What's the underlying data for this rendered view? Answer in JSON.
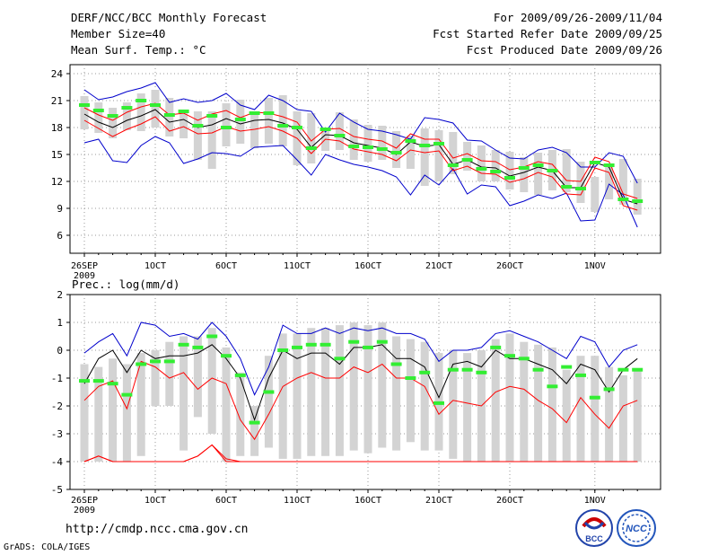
{
  "header": {
    "title": "DERF/NCC/BCC Monthly Forecast",
    "member_size": "Member Size=40",
    "variable": "Mean Surf. Temp.: °C",
    "period": "For 2009/09/26-2009/11/04",
    "started": "Fcst Started Refer Date 2009/09/25",
    "produced": "Fcst Produced Date 2009/09/26"
  },
  "footer": {
    "url": "http://cmdp.ncc.cma.gov.cn",
    "credit": "GrADS: COLA/IGES",
    "logo_bcc_text": "BCC",
    "logo_ncc_text": "NCC"
  },
  "colors": {
    "box": "#d3d3d3",
    "median": "#000000",
    "max": "#0000cc",
    "min": "#ff0000",
    "obs": "#33ee33",
    "red_env": "#cc0000"
  },
  "chart_data": [
    {
      "type": "line",
      "title": "Mean Surf. Temp.: °C",
      "ylim": [
        4,
        25
      ],
      "yticks": [
        6,
        9,
        12,
        15,
        18,
        21,
        24
      ],
      "ytick_labels": [
        "6",
        "9",
        "12",
        "15",
        "18",
        "21",
        "24"
      ],
      "x_tick_labels": [
        {
          "day": 0,
          "label": "26SEP",
          "sub": "2009"
        },
        {
          "day": 5,
          "label": "1OCT"
        },
        {
          "day": 10,
          "label": "6OCT"
        },
        {
          "day": 15,
          "label": "11OCT"
        },
        {
          "day": 20,
          "label": "16OCT"
        },
        {
          "day": 25,
          "label": "21OCT"
        },
        {
          "day": 30,
          "label": "26OCT"
        },
        {
          "day": 36,
          "label": "1NOV"
        }
      ],
      "x_days": 40,
      "series": [
        {
          "name": "box_top",
          "values": [
            21.5,
            20.8,
            20.2,
            20.8,
            21.8,
            22.2,
            21.3,
            19.7,
            19.8,
            19.8,
            20.7,
            21.1,
            19.6,
            21.3,
            21.6,
            19.8,
            19.6,
            17.8,
            19.7,
            18.9,
            18.3,
            18.2,
            17.6,
            17.1,
            17.9,
            17.7,
            17.5,
            16.4,
            16.0,
            15.5,
            15.3,
            14.7,
            15.2,
            15.5,
            15.6,
            14.2,
            12.5,
            13.7,
            14.5,
            12.3
          ]
        },
        {
          "name": "box_bottom",
          "values": [
            17.8,
            17.4,
            16.8,
            17.7,
            17.6,
            18.0,
            17.0,
            16.8,
            14.4,
            13.4,
            15.9,
            16.2,
            15.7,
            16.2,
            15.9,
            13.8,
            14.0,
            15.4,
            15.5,
            14.4,
            14.2,
            14.4,
            13.5,
            13.4,
            11.5,
            12.0,
            12.8,
            13.2,
            12.0,
            12.0,
            11.1,
            10.8,
            10.5,
            11.0,
            10.8,
            9.6,
            8.6,
            10.0,
            9.4,
            8.3
          ]
        },
        {
          "name": "max",
          "values": [
            22.2,
            21.1,
            21.4,
            22.0,
            22.4,
            23.0,
            20.8,
            21.2,
            20.8,
            21.0,
            21.8,
            20.5,
            20.0,
            21.6,
            21.0,
            20.0,
            19.8,
            17.5,
            19.6,
            18.6,
            17.8,
            17.6,
            17.2,
            16.7,
            19.1,
            18.9,
            18.5,
            16.6,
            16.5,
            15.5,
            14.6,
            14.5,
            15.5,
            15.8,
            15.2,
            13.6,
            13.6,
            15.2,
            14.8,
            11.8
          ]
        },
        {
          "name": "min",
          "values": [
            16.3,
            16.7,
            14.3,
            14.1,
            16.0,
            17.0,
            16.3,
            14.0,
            14.5,
            15.2,
            15.1,
            14.8,
            15.8,
            15.9,
            16.0,
            14.4,
            12.7,
            15.0,
            14.4,
            13.9,
            13.6,
            13.2,
            12.5,
            10.5,
            12.7,
            11.6,
            13.4,
            10.6,
            11.6,
            11.4,
            9.3,
            9.8,
            10.5,
            10.1,
            10.7,
            7.6,
            7.7,
            11.7,
            10.5,
            6.9
          ]
        },
        {
          "name": "median",
          "values": [
            19.5,
            18.6,
            18.0,
            18.8,
            19.3,
            20.0,
            18.6,
            18.9,
            18.0,
            18.3,
            19.0,
            18.4,
            18.8,
            18.9,
            18.5,
            17.8,
            15.8,
            17.2,
            17.1,
            16.3,
            16.0,
            15.7,
            15.0,
            16.4,
            15.9,
            16.1,
            13.9,
            14.4,
            13.6,
            13.5,
            12.6,
            13.0,
            13.6,
            13.2,
            11.3,
            11.3,
            14.1,
            13.6,
            10.0,
            9.5
          ]
        },
        {
          "name": "upper_red",
          "values": [
            20.2,
            19.4,
            18.8,
            19.7,
            20.3,
            20.7,
            19.4,
            19.6,
            18.8,
            19.5,
            19.9,
            19.1,
            19.7,
            19.6,
            19.2,
            18.6,
            16.5,
            17.8,
            17.9,
            17.0,
            16.7,
            16.5,
            15.7,
            17.3,
            16.7,
            16.7,
            14.6,
            15.1,
            14.3,
            14.2,
            13.3,
            13.6,
            14.2,
            13.9,
            12.1,
            12.0,
            14.7,
            14.2,
            10.6,
            10.1
          ]
        },
        {
          "name": "lower_red",
          "values": [
            18.8,
            17.9,
            17.0,
            17.8,
            18.4,
            19.2,
            17.6,
            18.1,
            17.3,
            17.4,
            18.1,
            17.6,
            17.8,
            18.1,
            17.6,
            16.8,
            15.1,
            16.7,
            16.5,
            15.6,
            15.3,
            15.0,
            14.3,
            15.5,
            15.2,
            15.4,
            13.2,
            13.7,
            12.9,
            12.8,
            11.9,
            12.3,
            13.0,
            12.5,
            10.6,
            10.5,
            13.5,
            13.0,
            9.3,
            8.8
          ]
        },
        {
          "name": "observed",
          "values": [
            20.5,
            19.9,
            19.3,
            20.2,
            21.0,
            20.5,
            19.4,
            19.8,
            18.2,
            19.3,
            18.0,
            18.9,
            19.6,
            19.6,
            18.2,
            18.0,
            15.7,
            17.8,
            17.1,
            15.9,
            15.8,
            15.6,
            15.2,
            16.5,
            16.0,
            16.2,
            13.8,
            14.4,
            13.4,
            13.1,
            12.4,
            13.5,
            13.8,
            13.2,
            11.4,
            11.2,
            14.1,
            13.8,
            10.0,
            9.8
          ]
        }
      ]
    },
    {
      "type": "line",
      "title": "Prec.: log(mm/d)",
      "ylim": [
        -5,
        2
      ],
      "yticks": [
        -5,
        -4,
        -3,
        -2,
        -1,
        0,
        1,
        2
      ],
      "ytick_labels": [
        "-5",
        "-4",
        "-3",
        "-2",
        "-1",
        "0",
        "1",
        "2"
      ],
      "x_tick_labels": [
        {
          "day": 0,
          "label": "26SEP",
          "sub": "2009"
        },
        {
          "day": 5,
          "label": "1OCT"
        },
        {
          "day": 10,
          "label": "6OCT"
        },
        {
          "day": 15,
          "label": "11OCT"
        },
        {
          "day": 20,
          "label": "16OCT"
        },
        {
          "day": 25,
          "label": "21OCT"
        },
        {
          "day": 30,
          "label": "26OCT"
        },
        {
          "day": 36,
          "label": "1NOV"
        }
      ],
      "x_days": 40,
      "series": [
        {
          "name": "box_top",
          "values": [
            -0.5,
            -0.6,
            -0.3,
            -0.5,
            -0.1,
            0.0,
            0.3,
            0.5,
            0.5,
            0.8,
            0.1,
            -0.8,
            -2.0,
            -0.2,
            0.6,
            0.6,
            0.8,
            0.8,
            0.9,
            1.0,
            0.9,
            1.0,
            0.5,
            0.4,
            0.3,
            -0.1,
            0.0,
            -0.1,
            0.0,
            0.4,
            0.6,
            0.3,
            0.2,
            0.1,
            -0.7,
            -0.2,
            -0.2,
            -0.6,
            -0.9,
            -0.7
          ]
        },
        {
          "name": "box_bottom",
          "values": [
            -4.0,
            -4.0,
            -4.0,
            -4.0,
            -3.8,
            -2.0,
            -2.0,
            -3.6,
            -2.4,
            -3.0,
            -4.0,
            -3.8,
            -3.8,
            -3.5,
            -3.9,
            -3.9,
            -3.8,
            -3.8,
            -3.8,
            -3.6,
            -3.7,
            -3.5,
            -3.6,
            -3.3,
            -3.6,
            -3.6,
            -3.9,
            -4.0,
            -4.0,
            -4.0,
            -4.0,
            -4.0,
            -4.0,
            -4.0,
            -4.0,
            -4.0,
            -4.0,
            -4.0,
            -4.0,
            -4.0
          ]
        },
        {
          "name": "max",
          "values": [
            -0.1,
            0.3,
            0.6,
            -0.2,
            1.0,
            0.9,
            0.5,
            0.6,
            0.4,
            1.0,
            0.5,
            -0.3,
            -1.6,
            -0.6,
            0.9,
            0.6,
            0.6,
            0.8,
            0.6,
            0.8,
            0.7,
            0.8,
            0.6,
            0.6,
            0.4,
            -0.4,
            0.0,
            0.0,
            0.1,
            0.6,
            0.7,
            0.5,
            0.3,
            0.0,
            -0.3,
            0.5,
            0.3,
            -0.6,
            0.0,
            0.2
          ]
        },
        {
          "name": "min",
          "values": [
            -4.0,
            -3.8,
            -4.0,
            -4.0,
            -4.0,
            -4.0,
            -4.0,
            -4.0,
            -3.8,
            -3.4,
            -4.0,
            -4.0,
            -4.0,
            -4.0,
            -4.0,
            -4.0,
            -4.0,
            -4.0,
            -4.0,
            -4.0,
            -4.0,
            -4.0,
            -4.0,
            -4.0,
            -4.0,
            -4.0,
            -4.0,
            -4.0,
            -4.0,
            -4.0,
            -4.0,
            -4.0,
            -4.0,
            -4.0,
            -4.0,
            -4.0,
            -4.0,
            -4.0,
            -4.0,
            -4.0
          ]
        },
        {
          "name": "median",
          "values": [
            -1.2,
            -0.3,
            0.0,
            -0.8,
            0.0,
            -0.3,
            -0.2,
            -0.2,
            -0.1,
            0.2,
            -0.3,
            -1.0,
            -2.5,
            -1.0,
            0.0,
            -0.3,
            -0.1,
            -0.1,
            -0.5,
            0.1,
            0.1,
            0.2,
            -0.3,
            -0.3,
            -0.6,
            -1.7,
            -0.5,
            -0.4,
            -0.6,
            0.0,
            -0.3,
            -0.3,
            -0.5,
            -0.7,
            -1.2,
            -0.5,
            -0.7,
            -1.5,
            -0.7,
            -0.3
          ]
        },
        {
          "name": "lower_red",
          "values": [
            -1.8,
            -1.3,
            -1.1,
            -2.1,
            -0.4,
            -0.6,
            -1.0,
            -0.8,
            -1.4,
            -1.0,
            -1.2,
            -2.5,
            -3.2,
            -2.3,
            -1.3,
            -1.0,
            -0.8,
            -1.0,
            -1.0,
            -0.6,
            -0.8,
            -0.5,
            -1.0,
            -1.0,
            -1.3,
            -2.3,
            -1.8,
            -1.9,
            -2.0,
            -1.5,
            -1.3,
            -1.4,
            -1.8,
            -2.1,
            -2.6,
            -1.7,
            -2.3,
            -2.8,
            -2.0,
            -1.8
          ]
        },
        {
          "name": "lower_floor",
          "values": [
            -4.0,
            -3.8,
            -4.0,
            -4.0,
            -4.0,
            -4.0,
            -4.0,
            -4.0,
            -3.8,
            -3.4,
            -3.9,
            -4.0,
            -4.0,
            -4.0,
            -4.0,
            -4.0,
            -4.0,
            -4.0,
            -4.0,
            -4.0,
            -4.0,
            -4.0,
            -4.0,
            -4.0,
            -4.0,
            -4.0,
            -4.0,
            -4.0,
            -4.0,
            -4.0,
            -4.0,
            -4.0,
            -4.0,
            -4.0,
            -4.0,
            -4.0,
            -4.0,
            -4.0,
            -4.0,
            -4.0
          ]
        },
        {
          "name": "observed",
          "values": [
            -1.1,
            -1.1,
            -1.2,
            -1.6,
            -0.5,
            -0.4,
            -0.4,
            0.2,
            0.1,
            0.5,
            -0.2,
            -0.9,
            -2.6,
            -1.5,
            0.0,
            0.1,
            0.2,
            0.2,
            -0.3,
            0.3,
            0.1,
            0.3,
            -0.5,
            -1.0,
            -0.8,
            -1.9,
            -0.7,
            -0.7,
            -0.8,
            0.1,
            -0.2,
            -0.3,
            -0.7,
            -1.3,
            -0.6,
            -0.9,
            -1.7,
            -1.4,
            -0.7,
            -0.7
          ]
        }
      ]
    }
  ]
}
